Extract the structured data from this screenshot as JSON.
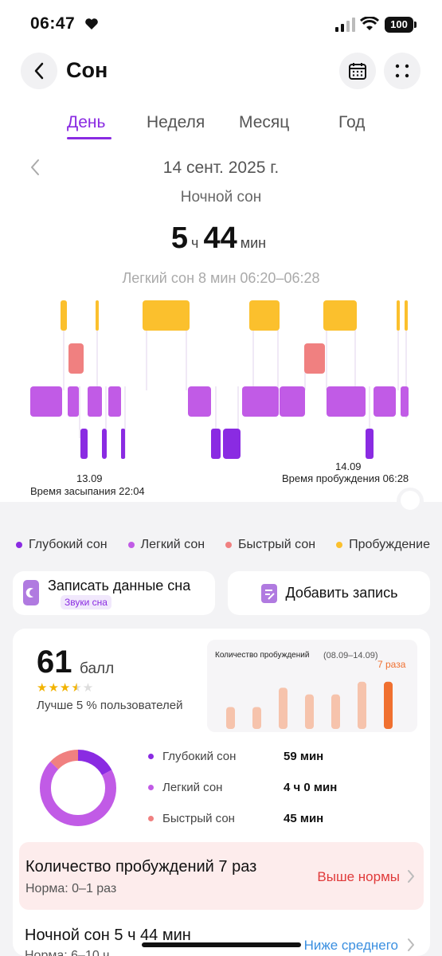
{
  "status_bar": {
    "time": "06:47",
    "battery": "100"
  },
  "header": {
    "title": "Сон"
  },
  "tabs": [
    {
      "label": "День",
      "active": true
    },
    {
      "label": "Неделя",
      "active": false
    },
    {
      "label": "Месяц",
      "active": false
    },
    {
      "label": "Год",
      "active": false
    }
  ],
  "date": "14 сент. 2025 г.",
  "sleep_type": "Ночной сон",
  "duration": {
    "hours": "5",
    "hours_unit": "ч",
    "minutes": "44",
    "minutes_unit": "мин"
  },
  "selected_segment": "Легкий сон 8 мин 06:20–06:28",
  "hypnogram": {
    "start_date": "13.09",
    "start_label": "Время засыпания 22:04",
    "end_date": "14.09",
    "end_label": "Время пробуждения 06:28"
  },
  "legend": [
    {
      "label": "Глубокий сон",
      "color": "#8a2be2"
    },
    {
      "label": "Легкий сон",
      "color": "#c15be6"
    },
    {
      "label": "Быстрый сон",
      "color": "#f08080"
    },
    {
      "label": "Пробуждение",
      "color": "#fbc02d"
    }
  ],
  "actions": {
    "record_title": "Записать данные сна",
    "record_badge": "Звуки сна",
    "add_label": "Добавить запись"
  },
  "score": {
    "value": "61",
    "unit": "балл",
    "stars": 3.5,
    "better_than": "Лучше 5 % пользователей"
  },
  "wake_chart": {
    "title": "Количество пробуждений",
    "range": "(08.09–14.09)",
    "current_label": "7 раза",
    "values": [
      2.6,
      2.6,
      4.9,
      4.1,
      4.1,
      5.6,
      5.6
    ],
    "bar_color": "#f6c3ac",
    "highlight_color": "#f07030"
  },
  "breakdown": [
    {
      "label": "Глубокий сон",
      "value": "59 мин",
      "color": "#8a2be2",
      "minutes": 59
    },
    {
      "label": "Легкий сон",
      "value": "4 ч 0 мин",
      "color": "#c15be6",
      "minutes": 240
    },
    {
      "label": "Быстрый сон",
      "value": "45 мин",
      "color": "#f08080",
      "minutes": 45
    }
  ],
  "warn": {
    "title": "Количество пробуждений 7 раз",
    "norm": "Норма: 0–1 раз",
    "status": "Выше нормы"
  },
  "night": {
    "title": "Ночной сон 5 ч 44 мин",
    "norm": "Норма: 6–10 ч",
    "status": "Ниже среднего"
  }
}
